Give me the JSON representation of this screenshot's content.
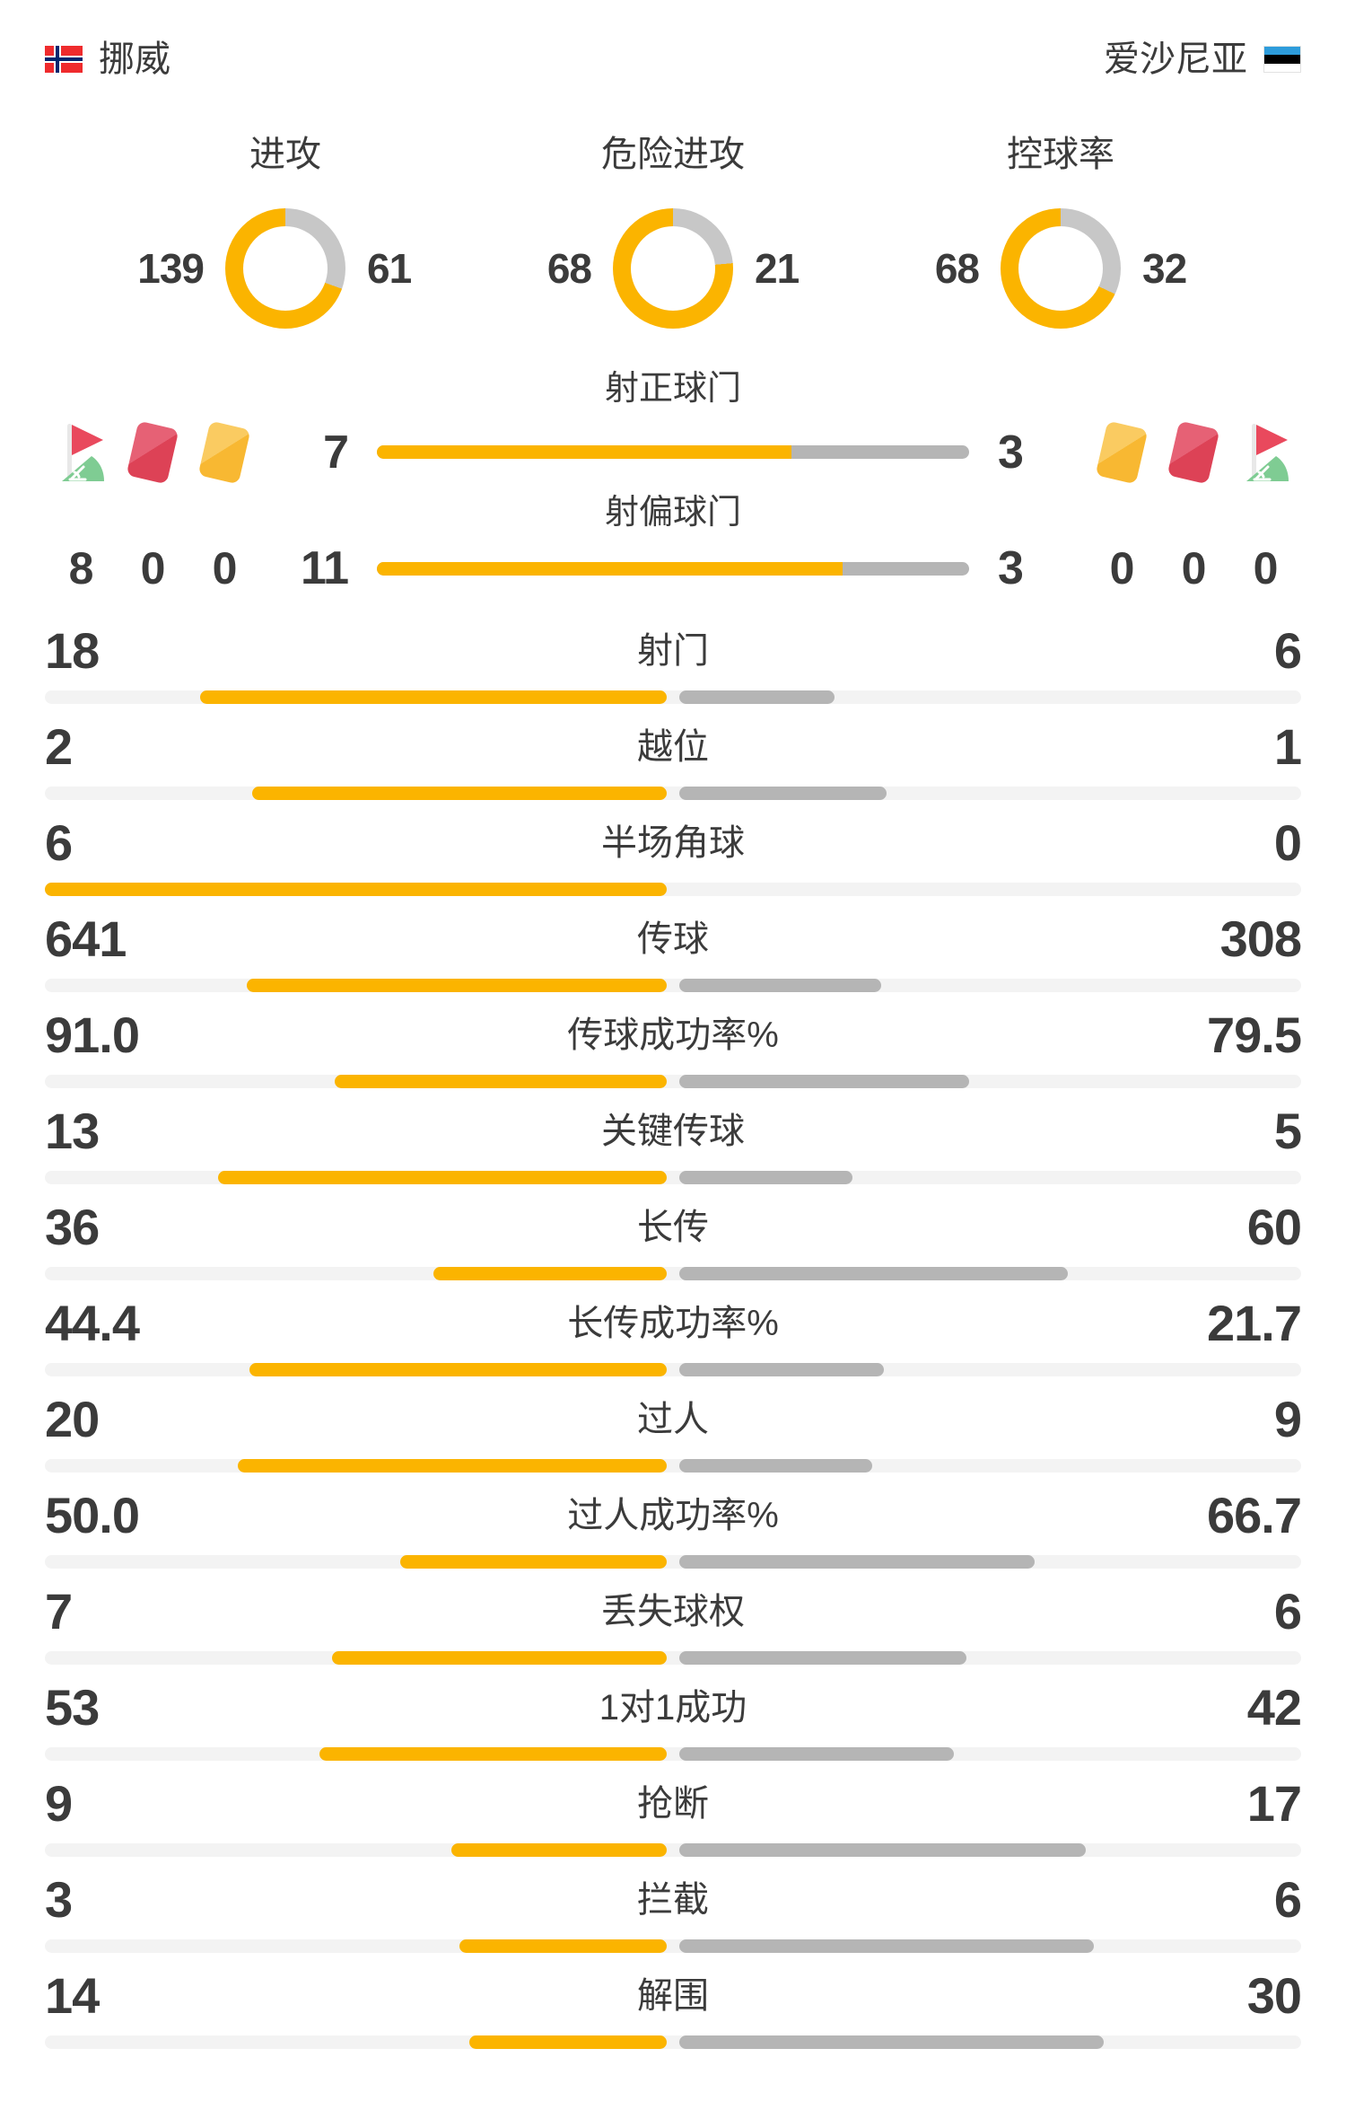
{
  "page": {
    "accent_yellow": "#fbb400",
    "bar_gray": "#b5b5b5",
    "track_gray": "#f3f3f3",
    "donut_gray": "#c7c7c7",
    "text_dark": "#3b3b3b"
  },
  "header": {
    "home_team": "挪威",
    "away_team": "爱沙尼亚",
    "home_flag": "norway-flag",
    "away_flag": "estonia-flag"
  },
  "donuts": [
    {
      "title": "进攻",
      "home": 139,
      "away": 61
    },
    {
      "title": "危险进攻",
      "home": 68,
      "away": 21
    },
    {
      "title": "控球率",
      "home": 68,
      "away": 32
    }
  ],
  "shots": {
    "on_target": {
      "title": "射正球门",
      "home": 7,
      "away": 3
    },
    "off_target": {
      "title": "射偏球门",
      "home": 11,
      "away": 3
    }
  },
  "discipline": {
    "home_icons": [
      "corner-flag",
      "red-card",
      "yellow-card"
    ],
    "away_icons": [
      "yellow-card",
      "red-card",
      "corner-flag"
    ],
    "home_values": [
      "8",
      "0",
      "0"
    ],
    "away_values": [
      "0",
      "0",
      "0"
    ]
  },
  "stats": [
    {
      "label": "射门",
      "home": "18",
      "away": "6"
    },
    {
      "label": "越位",
      "home": "2",
      "away": "1"
    },
    {
      "label": "半场角球",
      "home": "6",
      "away": "0"
    },
    {
      "label": "传球",
      "home": "641",
      "away": "308"
    },
    {
      "label": "传球成功率%",
      "home": "91.0",
      "away": "79.5"
    },
    {
      "label": "关键传球",
      "home": "13",
      "away": "5"
    },
    {
      "label": "长传",
      "home": "36",
      "away": "60"
    },
    {
      "label": "长传成功率%",
      "home": "44.4",
      "away": "21.7"
    },
    {
      "label": "过人",
      "home": "20",
      "away": "9"
    },
    {
      "label": "过人成功率%",
      "home": "50.0",
      "away": "66.7"
    },
    {
      "label": "丢失球权",
      "home": "7",
      "away": "6"
    },
    {
      "label": "1对1成功",
      "home": "53",
      "away": "42"
    },
    {
      "label": "抢断",
      "home": "9",
      "away": "17"
    },
    {
      "label": "拦截",
      "home": "3",
      "away": "6"
    },
    {
      "label": "解围",
      "home": "14",
      "away": "30"
    }
  ]
}
